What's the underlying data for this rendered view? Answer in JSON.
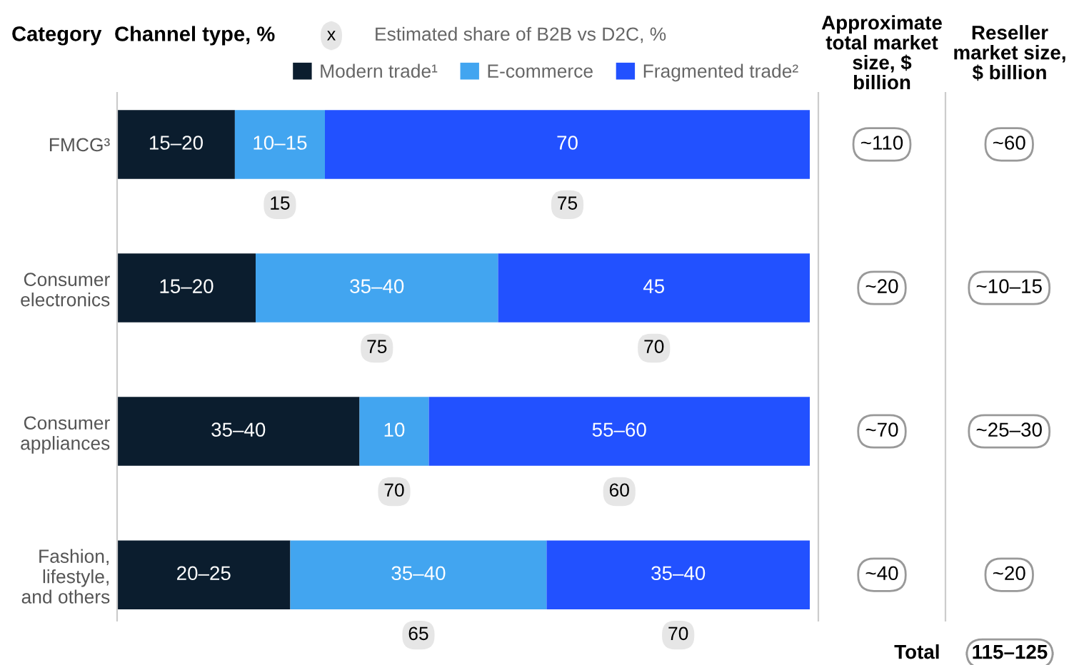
{
  "chart_data": [
    {
      "type": "bar",
      "orientation": "horizontal",
      "stacked": true,
      "title": "Channel type, %",
      "ylabel": "Category",
      "categories": [
        "FMCG³",
        "Consumer electronics",
        "Consumer appliances",
        "Fashion, lifestyle, and others"
      ],
      "xlim": [
        0,
        100
      ],
      "tick_labels": "y",
      "legend": "top",
      "grid": false,
      "series": [
        {
          "name": "Modern trade¹",
          "color": "#0b1d2e",
          "values": [
            17,
            20,
            35,
            25
          ],
          "value_labels": [
            "15–20",
            "15–20",
            "35–40",
            "20–25"
          ]
        },
        {
          "name": "E-commerce",
          "color": "#42a5f0",
          "values": [
            13,
            35,
            10,
            37
          ],
          "value_labels": [
            "10–15",
            "35–40",
            "10",
            "35–40"
          ]
        },
        {
          "name": "Fragmented trade²",
          "color": "#2251ff",
          "values": [
            70,
            45,
            55,
            38
          ],
          "value_labels": [
            "70",
            "45",
            "55–60",
            "35–40"
          ]
        }
      ],
      "annotations": [
        "x",
        "Estimated share of B2B vs D2C, %",
        "15",
        "75",
        "75",
        "70",
        "70",
        "60",
        "65",
        "70"
      ]
    },
    {
      "type": "other",
      "title": "Approximate total market size, $ billion",
      "annotations": [
        "~110",
        "~20",
        "~70",
        "~40"
      ]
    },
    {
      "type": "other",
      "title": "Reseller market size, $ billion",
      "annotations": [
        "~60",
        "~10–15",
        "~25–30",
        "~20",
        "Total",
        "115–125"
      ]
    }
  ]
}
